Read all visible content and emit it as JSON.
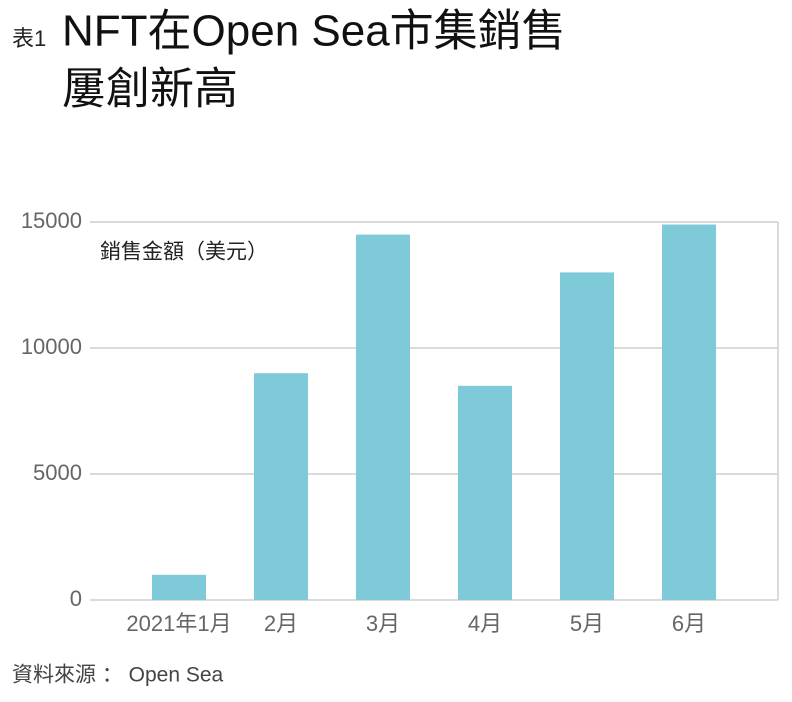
{
  "chart_data": {
    "type": "bar",
    "title_prefix": "表1",
    "title": [
      "NFT在Open Sea市集銷售",
      "屢創新高"
    ],
    "y_label": "銷售金額（美元）",
    "source": "資料來源 ： Open Sea",
    "categories": [
      "2021年1月",
      "2月",
      "3月",
      "4月",
      "5月",
      "6月"
    ],
    "values": [
      1000,
      9000,
      14500,
      8500,
      13000,
      14900
    ],
    "color": "#7ecad8",
    "ylim": [
      0,
      15000
    ],
    "yticks": [
      0,
      5000,
      10000,
      15000
    ],
    "grid": true
  }
}
